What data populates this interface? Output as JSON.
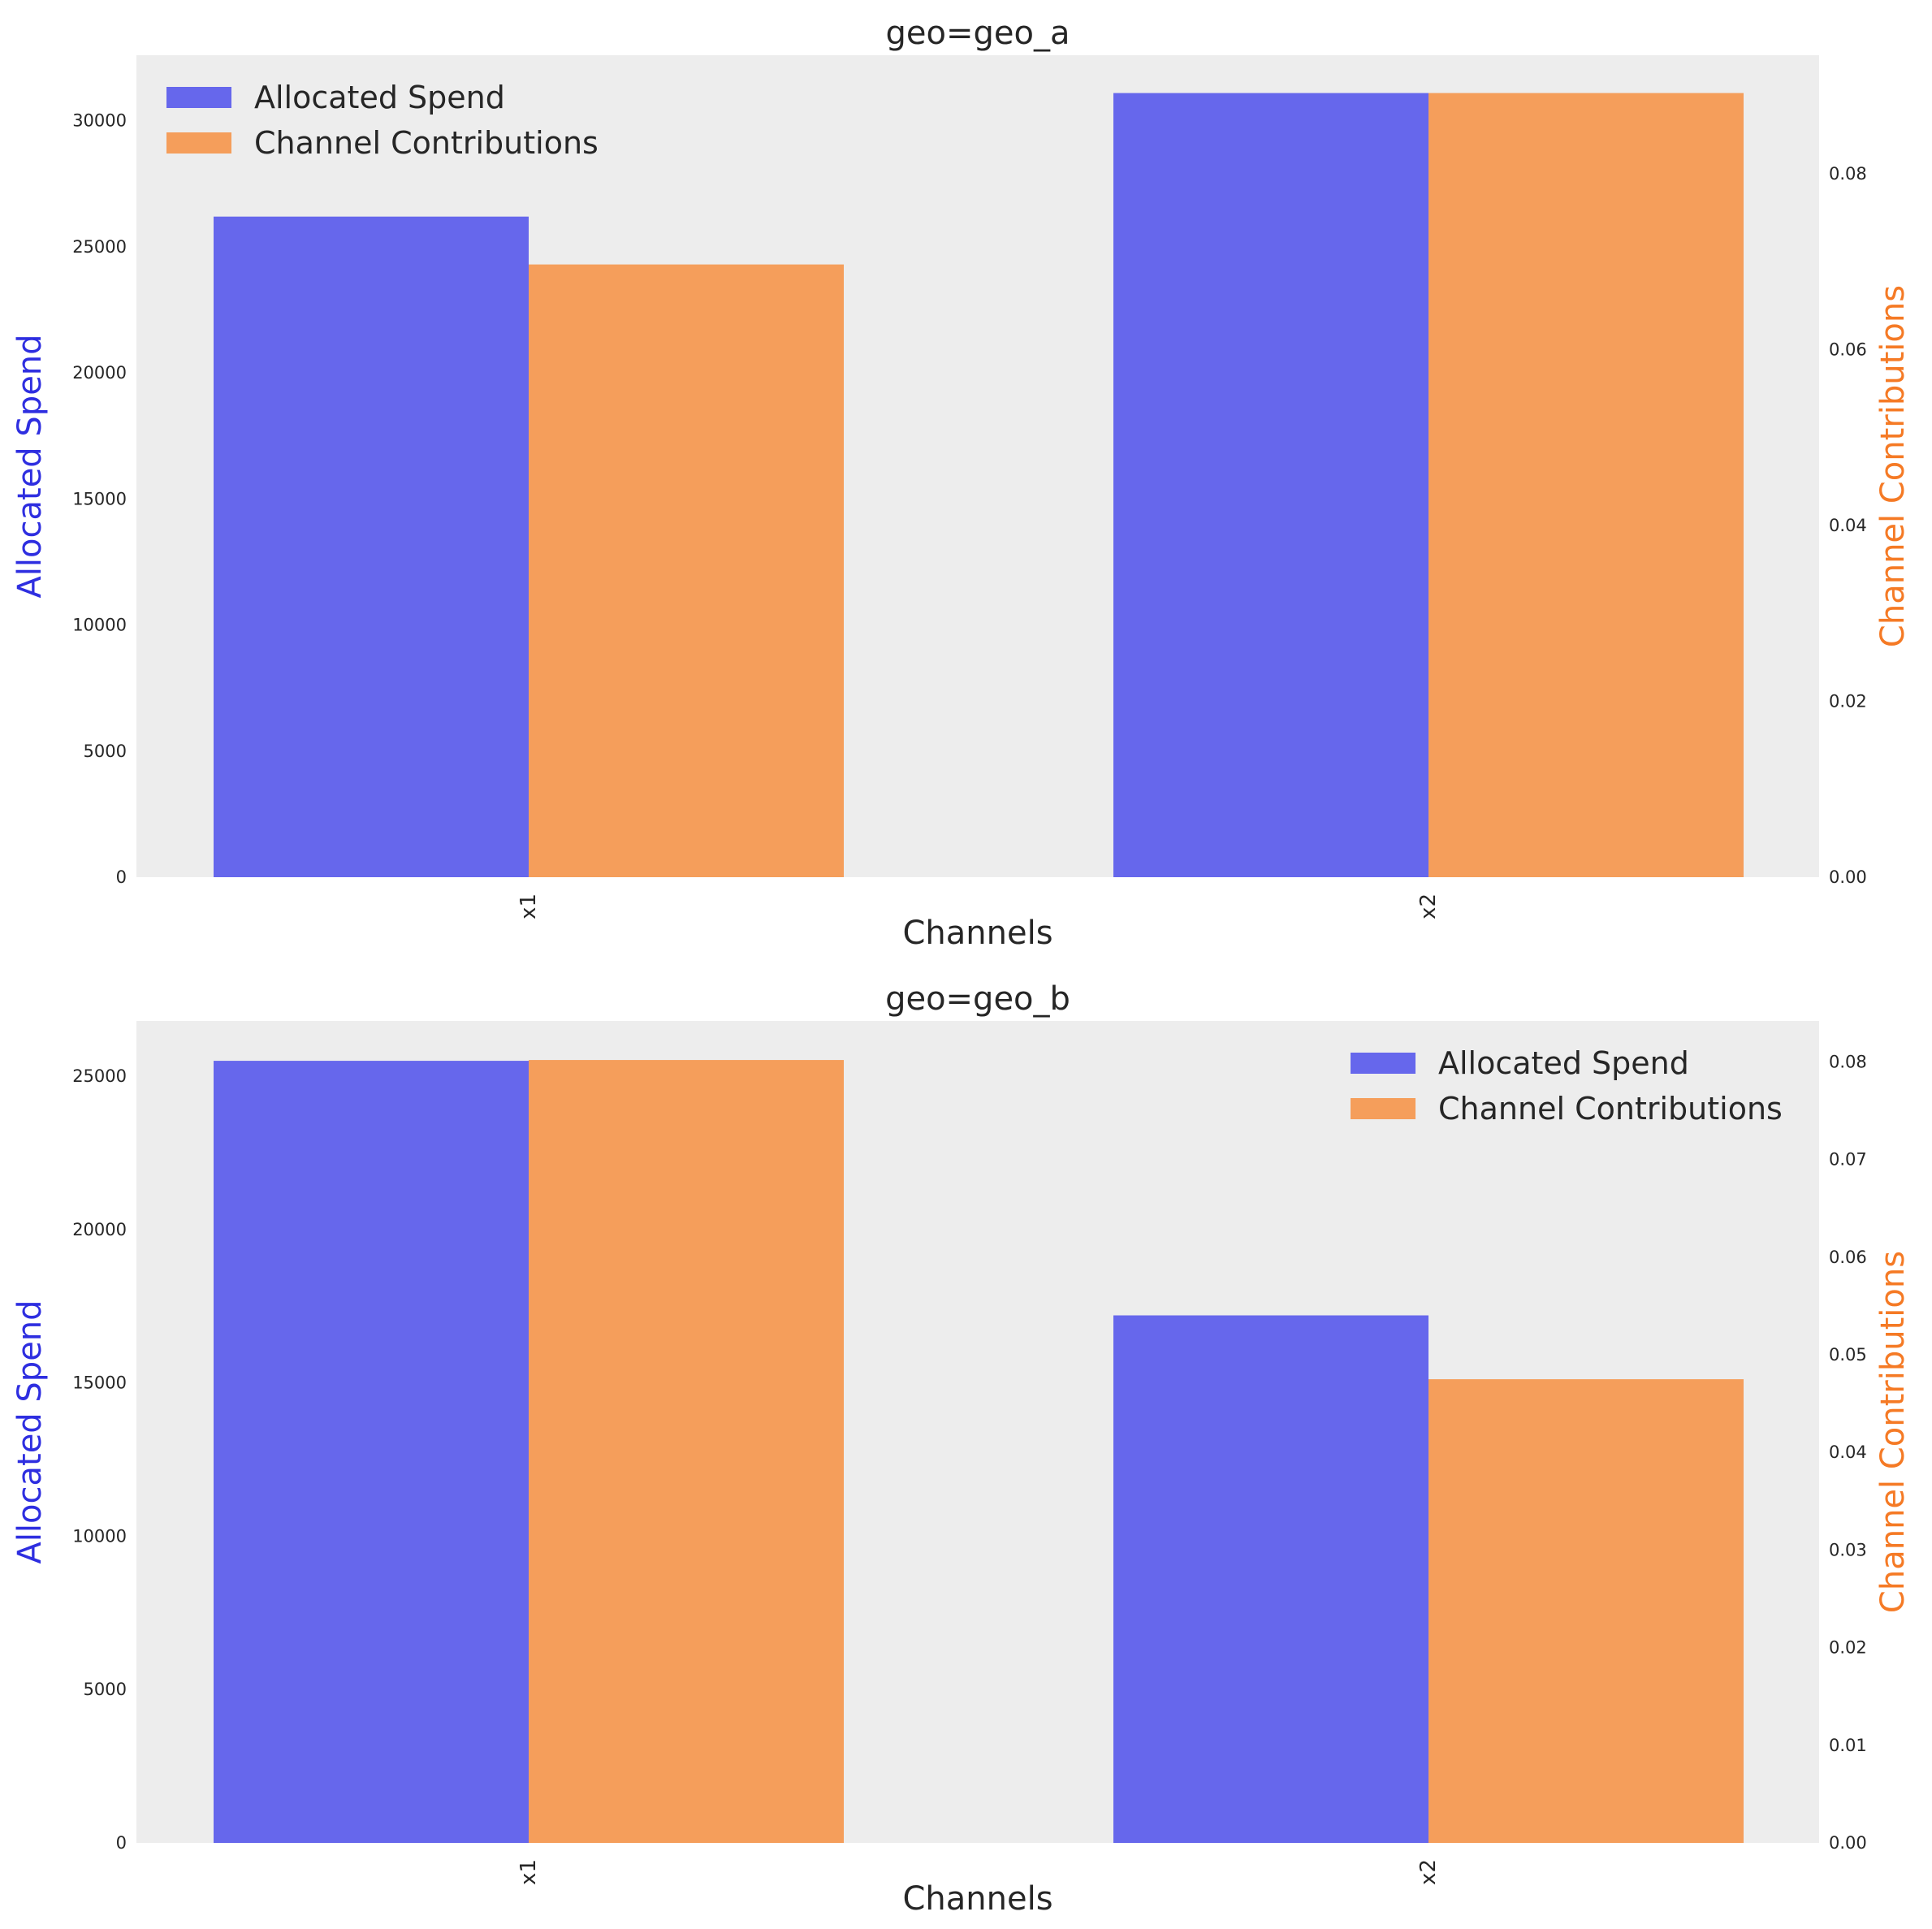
{
  "colors": {
    "spend": "#6667ec",
    "contrib": "#f59e5b",
    "left_label": "#2e2ee0",
    "right_label": "#f57a25",
    "panel_bg": "#ededed"
  },
  "chart_data": [
    {
      "type": "bar",
      "title": "geo=geo_a",
      "xlabel": "Channels",
      "ylabel_left": "Allocated Spend",
      "ylabel_right": "Channel Contributions",
      "categories": [
        "x1",
        "x2"
      ],
      "series": [
        {
          "name": "Allocated Spend",
          "axis": "left",
          "values": [
            26200,
            31100
          ]
        },
        {
          "name": "Channel Contributions",
          "axis": "right",
          "values": [
            0.0697,
            0.0892
          ]
        }
      ],
      "ylim_left": [
        0,
        32600
      ],
      "ylim_right": [
        0,
        0.0935
      ],
      "yticks_left": [
        0,
        5000,
        10000,
        15000,
        20000,
        25000,
        30000
      ],
      "yticks_left_labels": [
        "0",
        "5000",
        "10000",
        "15000",
        "20000",
        "25000",
        "30000"
      ],
      "yticks_right": [
        0,
        0.02,
        0.04,
        0.06,
        0.08
      ],
      "yticks_right_labels": [
        "0.00",
        "0.02",
        "0.04",
        "0.06",
        "0.08"
      ],
      "legend_position": "top-left"
    },
    {
      "type": "bar",
      "title": "geo=geo_b",
      "xlabel": "Channels",
      "ylabel_left": "Allocated Spend",
      "ylabel_right": "Channel Contributions",
      "categories": [
        "x1",
        "x2"
      ],
      "series": [
        {
          "name": "Allocated Spend",
          "axis": "left",
          "values": [
            25500,
            17200
          ]
        },
        {
          "name": "Channel Contributions",
          "axis": "right",
          "values": [
            0.0802,
            0.0475
          ]
        }
      ],
      "ylim_left": [
        0,
        26800
      ],
      "ylim_right": [
        0,
        0.0842
      ],
      "yticks_left": [
        0,
        5000,
        10000,
        15000,
        20000,
        25000
      ],
      "yticks_left_labels": [
        "0",
        "5000",
        "10000",
        "15000",
        "20000",
        "25000"
      ],
      "yticks_right": [
        0,
        0.01,
        0.02,
        0.03,
        0.04,
        0.05,
        0.06,
        0.07,
        0.08
      ],
      "yticks_right_labels": [
        "0.00",
        "0.01",
        "0.02",
        "0.03",
        "0.04",
        "0.05",
        "0.06",
        "0.07",
        "0.08"
      ],
      "legend_position": "top-right"
    }
  ]
}
